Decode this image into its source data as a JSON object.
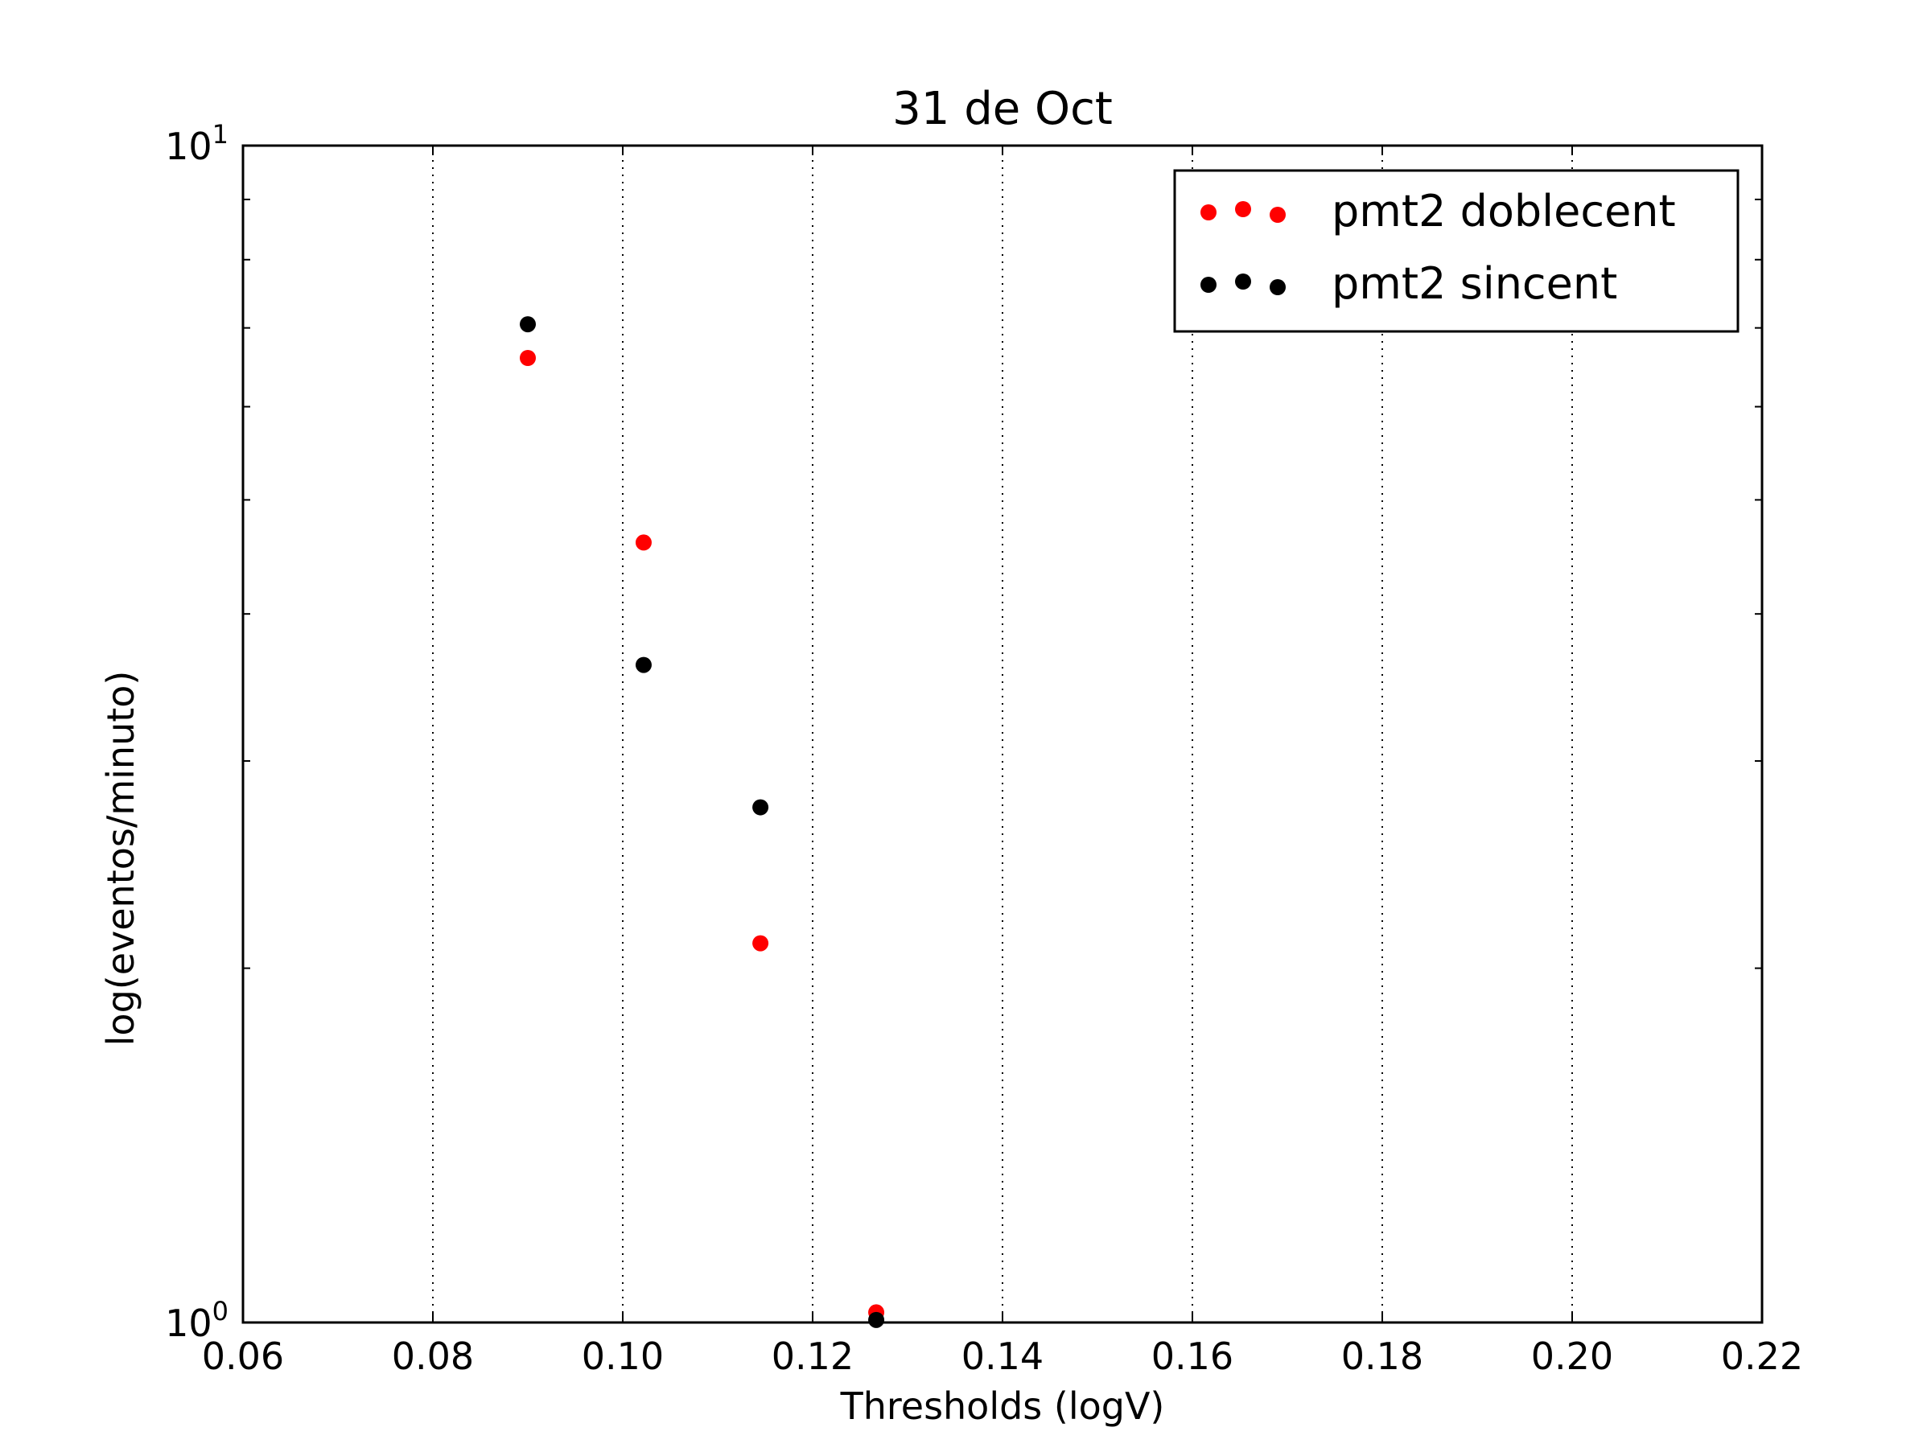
{
  "chart_data": {
    "type": "scatter",
    "title": "31 de Oct",
    "xlabel": "Thresholds (logV)",
    "ylabel": "log(eventos/minuto)",
    "xlim": [
      0.06,
      0.22
    ],
    "ylim": [
      1,
      10
    ],
    "yscale": "log",
    "grid": "vertical dotted",
    "legend_position": "top-right",
    "x_ticks": [
      "0.06",
      "0.08",
      "0.10",
      "0.12",
      "0.14",
      "0.16",
      "0.18",
      "0.20",
      "0.22"
    ],
    "y_ticks": [
      {
        "base": "10",
        "exp": "0",
        "value": 1
      },
      {
        "base": "10",
        "exp": "1",
        "value": 10
      }
    ],
    "series": [
      {
        "name": "pmt2 doblecent",
        "color": "#ff0000",
        "points": [
          {
            "x": 0.09,
            "y": 6.6
          },
          {
            "x": 0.1022,
            "y": 4.6
          },
          {
            "x": 0.1145,
            "y": 2.1
          },
          {
            "x": 0.1267,
            "y": 1.02
          }
        ]
      },
      {
        "name": "pmt2 sincent",
        "color": "#000000",
        "points": [
          {
            "x": 0.09,
            "y": 7.05
          },
          {
            "x": 0.1022,
            "y": 3.62
          },
          {
            "x": 0.1145,
            "y": 2.74
          },
          {
            "x": 0.1267,
            "y": 1.005
          }
        ]
      }
    ]
  }
}
